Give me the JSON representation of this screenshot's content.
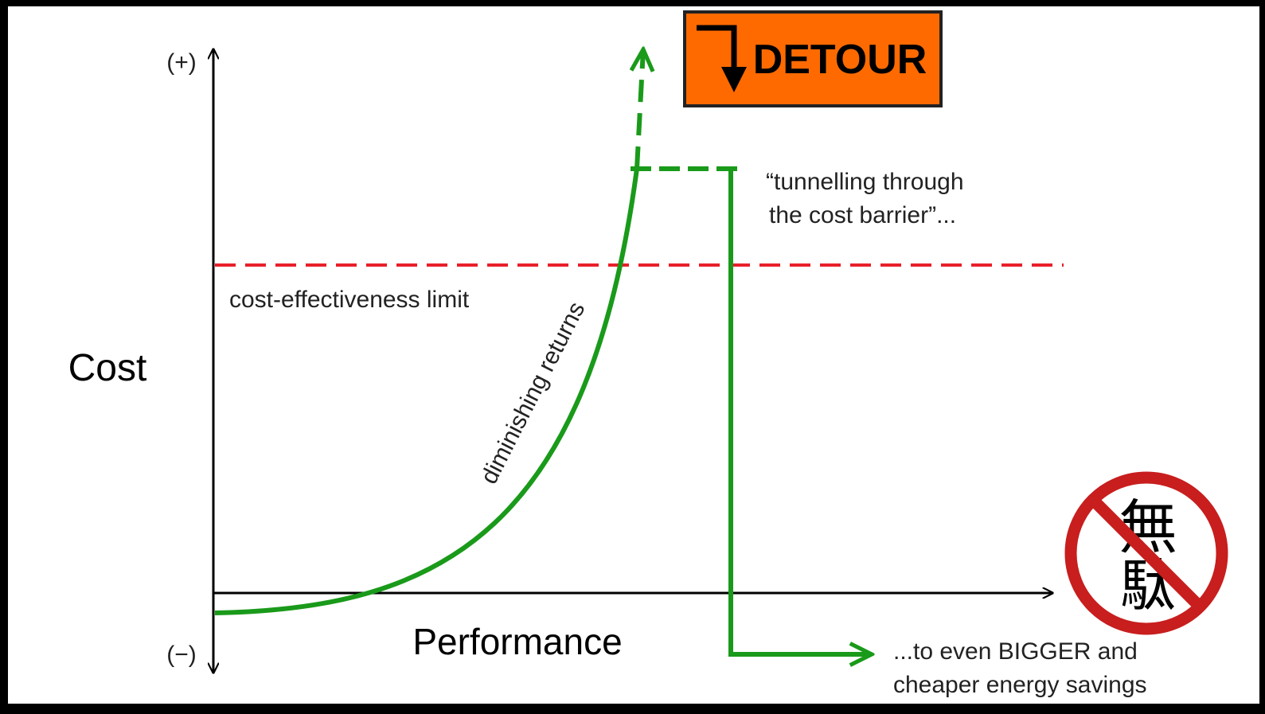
{
  "axes": {
    "y_top": "(+)",
    "y_bottom": "(−)",
    "y_title": "Cost",
    "x_title": "Performance"
  },
  "limit_label": "cost-effectiveness limit",
  "curve_label": "diminishing returns",
  "sign": {
    "text": "DETOUR"
  },
  "tunnel_label": [
    "“tunnelling through",
    "the cost barrier”..."
  ],
  "result_label": [
    "...to even BIGGER and",
    "cheaper energy savings"
  ],
  "muda": [
    "無",
    "駄"
  ]
}
